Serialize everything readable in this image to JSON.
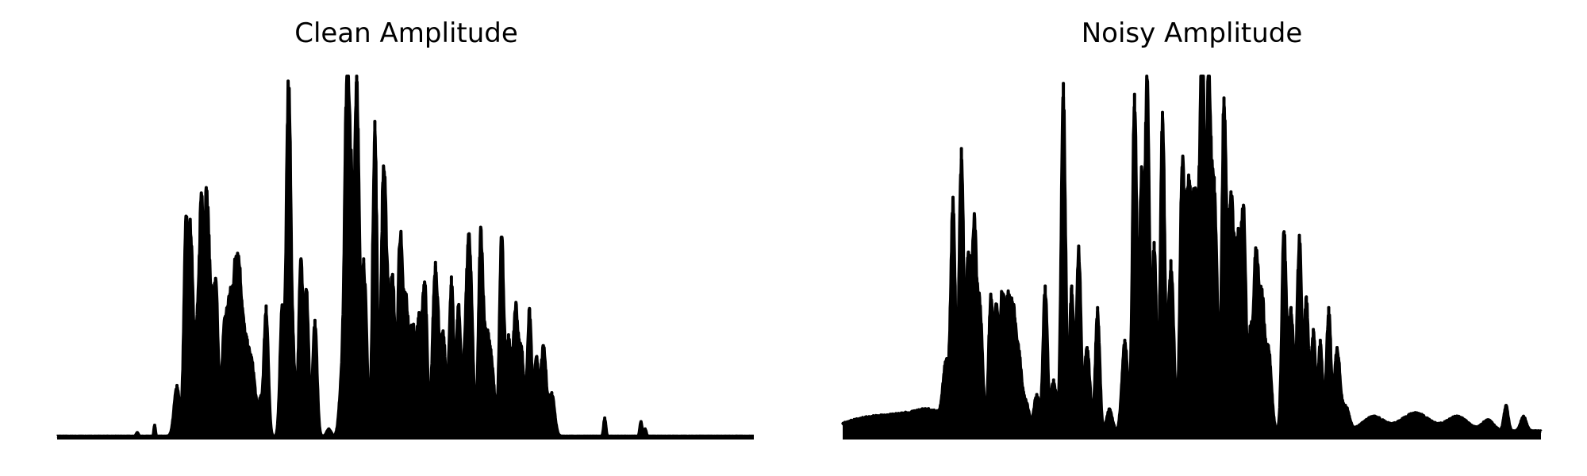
{
  "chart_data": [
    {
      "type": "area",
      "title": "Clean Amplitude",
      "axes_visible": false,
      "grid": false,
      "color": "#000000",
      "xlim": [
        0,
        1000
      ],
      "ylim": [
        0,
        1
      ],
      "baseline": 0.005,
      "peaks": [
        [
          115,
          0.01,
          1.5
        ],
        [
          140,
          0.03,
          1
        ],
        [
          172,
          0.14,
          4
        ],
        [
          185,
          0.58,
          3
        ],
        [
          192,
          0.55,
          3
        ],
        [
          200,
          0.27,
          3
        ],
        [
          207,
          0.65,
          3
        ],
        [
          214,
          0.53,
          3
        ],
        [
          220,
          0.38,
          4
        ],
        [
          228,
          0.38,
          3
        ],
        [
          240,
          0.28,
          4
        ],
        [
          248,
          0.32,
          4
        ],
        [
          256,
          0.37,
          4
        ],
        [
          262,
          0.3,
          4
        ],
        [
          270,
          0.23,
          5
        ],
        [
          280,
          0.18,
          5
        ],
        [
          292,
          0.09,
          3
        ],
        [
          300,
          0.36,
          3
        ],
        [
          323,
          0.36,
          3
        ],
        [
          332,
          0.94,
          3
        ],
        [
          338,
          0.22,
          4
        ],
        [
          350,
          0.49,
          3
        ],
        [
          358,
          0.4,
          3
        ],
        [
          370,
          0.32,
          3
        ],
        [
          390,
          0.02,
          3
        ],
        [
          410,
          0.2,
          4
        ],
        [
          416,
          0.91,
          3
        ],
        [
          422,
          0.64,
          3
        ],
        [
          430,
          1.0,
          3
        ],
        [
          440,
          0.49,
          4
        ],
        [
          456,
          0.87,
          3
        ],
        [
          468,
          0.63,
          3
        ],
        [
          474,
          0.4,
          4
        ],
        [
          482,
          0.39,
          3
        ],
        [
          492,
          0.53,
          3
        ],
        [
          500,
          0.38,
          4
        ],
        [
          510,
          0.29,
          4
        ],
        [
          520,
          0.32,
          4
        ],
        [
          528,
          0.4,
          3
        ],
        [
          543,
          0.48,
          4
        ],
        [
          554,
          0.28,
          4
        ],
        [
          566,
          0.44,
          3
        ],
        [
          576,
          0.36,
          3
        ],
        [
          586,
          0.18,
          4
        ],
        [
          592,
          0.5,
          4
        ],
        [
          608,
          0.55,
          3
        ],
        [
          616,
          0.27,
          4
        ],
        [
          624,
          0.18,
          4
        ],
        [
          638,
          0.55,
          3
        ],
        [
          648,
          0.28,
          4
        ],
        [
          658,
          0.33,
          3
        ],
        [
          666,
          0.25,
          4
        ],
        [
          678,
          0.35,
          3
        ],
        [
          688,
          0.21,
          3
        ],
        [
          698,
          0.25,
          4
        ],
        [
          710,
          0.12,
          4
        ],
        [
          786,
          0.05,
          1.5
        ],
        [
          838,
          0.04,
          1.5
        ],
        [
          844,
          0.02,
          1.5
        ]
      ]
    },
    {
      "type": "area",
      "title": "Noisy Amplitude",
      "axes_visible": false,
      "grid": false,
      "color": "#000000",
      "xlim": [
        0,
        1000
      ],
      "ylim": [
        0,
        1
      ],
      "baseline": 0.02,
      "peaks": [
        [
          20,
          0.02,
          30
        ],
        [
          80,
          0.04,
          40
        ],
        [
          130,
          0.04,
          25
        ],
        [
          148,
          0.16,
          4
        ],
        [
          158,
          0.62,
          3
        ],
        [
          170,
          0.78,
          3
        ],
        [
          180,
          0.49,
          3
        ],
        [
          188,
          0.55,
          3
        ],
        [
          196,
          0.36,
          4
        ],
        [
          212,
          0.37,
          3
        ],
        [
          220,
          0.34,
          3
        ],
        [
          228,
          0.35,
          3
        ],
        [
          236,
          0.33,
          4
        ],
        [
          244,
          0.29,
          4
        ],
        [
          252,
          0.19,
          4
        ],
        [
          262,
          0.08,
          5
        ],
        [
          278,
          0.1,
          4
        ],
        [
          290,
          0.4,
          3
        ],
        [
          302,
          0.14,
          4
        ],
        [
          316,
          0.96,
          3
        ],
        [
          328,
          0.4,
          3
        ],
        [
          338,
          0.51,
          3
        ],
        [
          350,
          0.23,
          4
        ],
        [
          365,
          0.34,
          3
        ],
        [
          382,
          0.06,
          4
        ],
        [
          404,
          0.25,
          4
        ],
        [
          418,
          0.93,
          3
        ],
        [
          428,
          0.7,
          3
        ],
        [
          436,
          0.97,
          3
        ],
        [
          446,
          0.52,
          3
        ],
        [
          458,
          0.88,
          3
        ],
        [
          470,
          0.47,
          4
        ],
        [
          486,
          0.68,
          3
        ],
        [
          494,
          0.57,
          4
        ],
        [
          505,
          0.67,
          6
        ],
        [
          515,
          0.98,
          3
        ],
        [
          524,
          0.93,
          3
        ],
        [
          532,
          0.7,
          4
        ],
        [
          546,
          0.92,
          3
        ],
        [
          556,
          0.66,
          4
        ],
        [
          566,
          0.52,
          4
        ],
        [
          574,
          0.56,
          3
        ],
        [
          584,
          0.28,
          4
        ],
        [
          592,
          0.45,
          3
        ],
        [
          600,
          0.38,
          4
        ],
        [
          610,
          0.22,
          4
        ],
        [
          632,
          0.55,
          3
        ],
        [
          642,
          0.34,
          4
        ],
        [
          654,
          0.54,
          3
        ],
        [
          664,
          0.37,
          3
        ],
        [
          674,
          0.28,
          3
        ],
        [
          684,
          0.25,
          3
        ],
        [
          696,
          0.34,
          3
        ],
        [
          708,
          0.23,
          4
        ],
        [
          720,
          0.07,
          5
        ],
        [
          760,
          0.04,
          15
        ],
        [
          820,
          0.05,
          20
        ],
        [
          880,
          0.04,
          15
        ],
        [
          924,
          0.03,
          8
        ],
        [
          950,
          0.07,
          3
        ],
        [
          975,
          0.04,
          4
        ]
      ]
    }
  ]
}
